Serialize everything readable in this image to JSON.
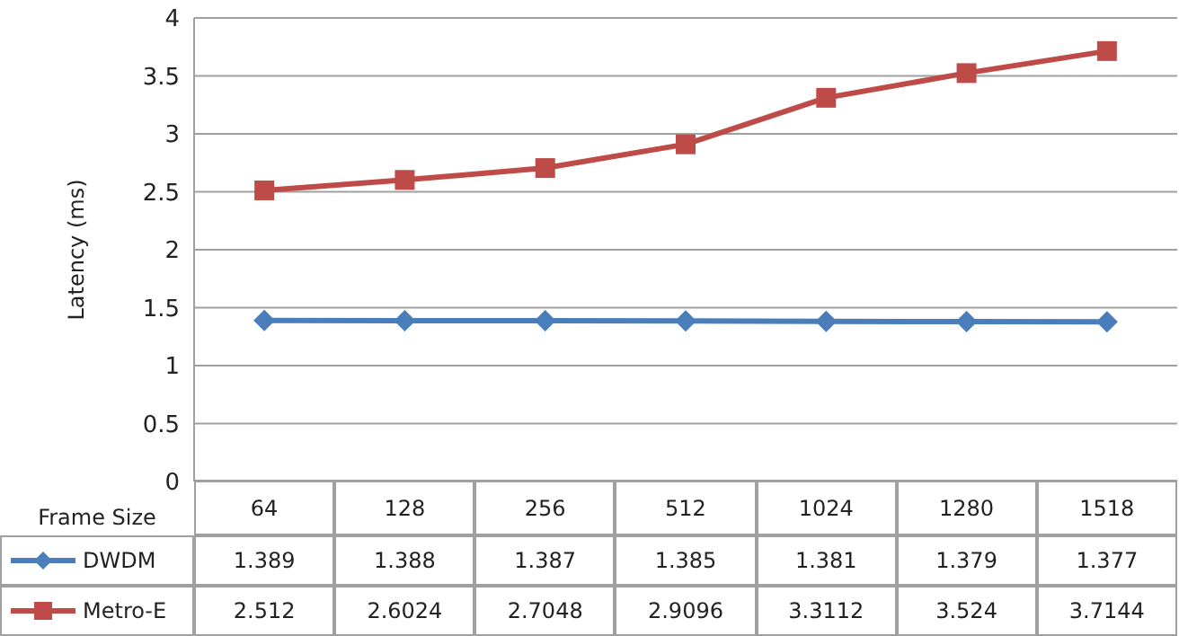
{
  "chart_data": {
    "type": "line",
    "xlabel": "Frame Size",
    "ylabel": "Latency (ms)",
    "categories": [
      "64",
      "128",
      "256",
      "512",
      "1024",
      "1280",
      "1518"
    ],
    "series": [
      {
        "name": "DWDM",
        "color": "#4a7ebb",
        "marker": "diamond",
        "values": [
          1.389,
          1.388,
          1.387,
          1.385,
          1.381,
          1.379,
          1.377
        ]
      },
      {
        "name": "Metro-E",
        "color": "#be4b48",
        "marker": "square",
        "values": [
          2.512,
          2.6024,
          2.7048,
          2.9096,
          3.3112,
          3.524,
          3.7144
        ]
      }
    ],
    "ylim": [
      0,
      4
    ],
    "yticks": [
      0,
      0.5,
      1,
      1.5,
      2,
      2.5,
      3,
      3.5,
      4
    ],
    "grid": "y",
    "legend": "bottom",
    "data_labels": true
  }
}
